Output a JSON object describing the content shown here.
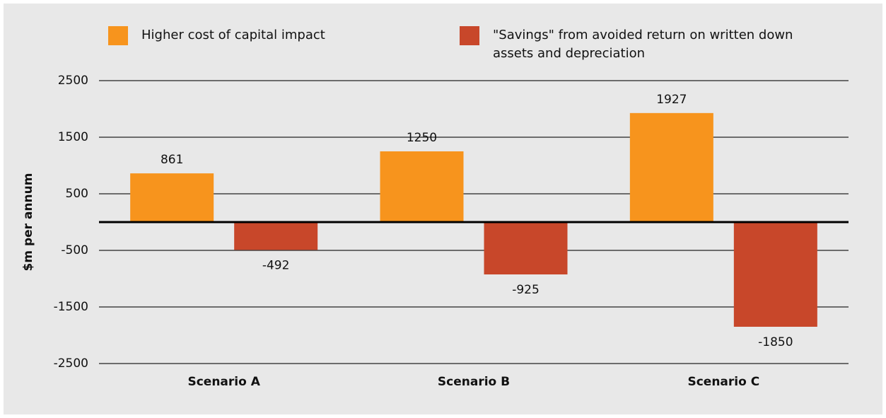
{
  "chart_data": {
    "type": "bar",
    "y_label": "$m per annum",
    "categories": [
      "Scenario A",
      "Scenario B",
      "Scenario C"
    ],
    "series": [
      {
        "name": "Higher cost of capital impact",
        "color": "#f7941d",
        "values": [
          861,
          1250,
          1927
        ]
      },
      {
        "name": "\"Savings\" from avoided return on written down assets and depreciation",
        "color": "#c8472a",
        "values": [
          -492,
          -925,
          -1850
        ]
      }
    ],
    "ylim": [
      -2500,
      2500
    ],
    "yticks": [
      2500,
      1500,
      500,
      -500,
      -1500,
      -2500
    ],
    "grid": true
  }
}
